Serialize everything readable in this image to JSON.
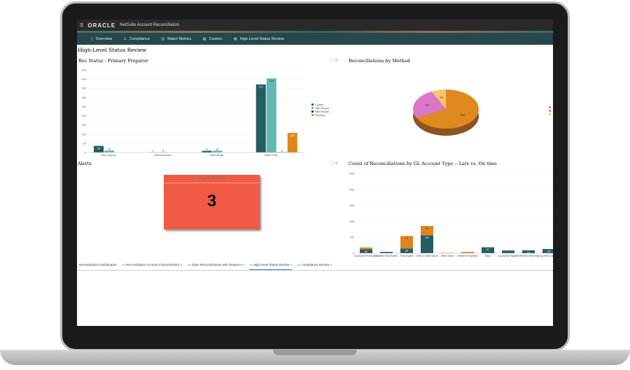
{
  "app": {
    "brand": "ORACLE",
    "title": "NetSuite Account Reconciliation"
  },
  "nav": [
    {
      "icon": "overview-icon",
      "label": "Overview"
    },
    {
      "icon": "compliance-icon",
      "label": "Compliance"
    },
    {
      "icon": "metrics-icon",
      "label": "Match Metrics"
    },
    {
      "icon": "custom-icon",
      "label": "Custom"
    },
    {
      "icon": "status-icon",
      "label": "High-Level Status Review"
    }
  ],
  "page_title": "High-Level Status Review",
  "panels": {
    "rec_status": "Rec Status - Primary Preparer",
    "by_method": "Reconciliations by Method",
    "alerts": "Alerts",
    "gl": "Count of Reconciliations by GL Account Type -- Late vs. On time"
  },
  "alert_tile": {
    "title": "Open Alerts",
    "value": "3",
    "color": "#f05a44"
  },
  "bottom_tabs": [
    "Reconciliation Dashboards",
    "Reconciliation Account Characteristics",
    "Open Reconciliations with Preparer",
    "High-Level Status Review",
    "Compliance Review"
  ],
  "chart_data": [
    {
      "type": "bar",
      "title": "Rec Status - Primary Preparer",
      "categories": [
        "Ann Traynor",
        "Conner Avery",
        "Nick Singh",
        "Vince Ford"
      ],
      "ylim": [
        0,
        450
      ],
      "yticks": [
        0,
        50,
        100,
        150,
        200,
        250,
        300,
        350,
        400,
        450
      ],
      "legend": "right",
      "series": [
        {
          "name": "Closed",
          "color": "#245e63",
          "values": [
            36,
            1,
            9,
            371
          ]
        },
        {
          "name": "With Preparer",
          "color": "#5fbab3",
          "values": [
            11,
            2,
            10,
            404
          ]
        },
        {
          "name": "With Reviewer Level 1",
          "color": "#3b2d2a",
          "values": [
            0,
            0,
            0,
            2
          ]
        },
        {
          "name": "Pending",
          "color": "#e0861e",
          "values": [
            0,
            0,
            0,
            107
          ]
        }
      ]
    },
    {
      "type": "pie",
      "title": "Reconciliations by Method",
      "values": [
        642,
        242,
        68
      ],
      "colors": [
        "#e0891e",
        "#d978c8",
        "#f7c46e"
      ]
    },
    {
      "type": "bar",
      "stacked": true,
      "title": "Count of Reconciliations by GL Account Type -- Late vs. On time",
      "ylim": [
        0,
        500
      ],
      "yticks": [
        0,
        100,
        200,
        300,
        400,
        500
      ],
      "categories": [
        "Accounts Receivable",
        "Unbilled Receivable",
        "Fixed Asset",
        "Other Current Asset",
        "Other Asset",
        "Deferred Expense",
        "Bank",
        "Accounts Payable",
        "Deferred Revenue",
        "Long Term Liabilities"
      ],
      "series": [
        {
          "color": "#245e63",
          "values": [
            24,
            8,
            30,
            112,
            0,
            0,
            37,
            17,
            18,
            26
          ]
        },
        {
          "color": "#e0861e",
          "values": [
            12,
            0,
            78,
            59,
            3,
            8,
            0,
            0,
            0,
            0
          ]
        }
      ]
    }
  ]
}
